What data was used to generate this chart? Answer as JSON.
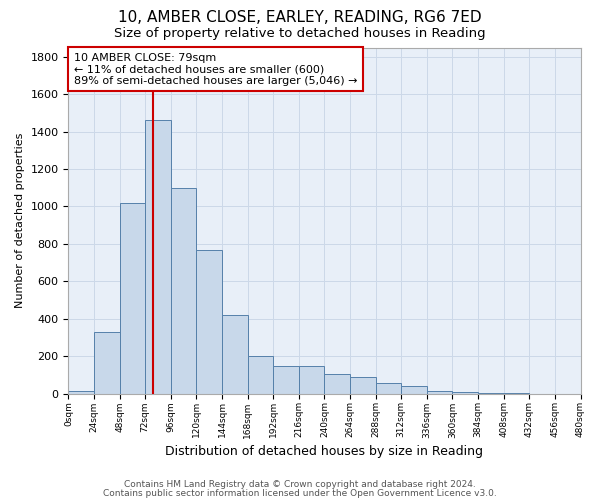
{
  "title1": "10, AMBER CLOSE, EARLEY, READING, RG6 7ED",
  "title2": "Size of property relative to detached houses in Reading",
  "xlabel": "Distribution of detached houses by size in Reading",
  "ylabel": "Number of detached properties",
  "bar_edges": [
    0,
    24,
    48,
    72,
    96,
    120,
    144,
    168,
    192,
    216,
    240,
    264,
    288,
    312,
    336,
    360,
    384,
    408,
    432,
    456,
    480
  ],
  "bar_values": [
    15,
    330,
    1020,
    1460,
    1100,
    770,
    420,
    200,
    145,
    145,
    105,
    90,
    55,
    40,
    15,
    8,
    3,
    1,
    0,
    0
  ],
  "bar_color": "#c8d8ea",
  "bar_edge_color": "#5580aa",
  "bar_linewidth": 0.7,
  "red_line_x": 79,
  "red_line_color": "#cc0000",
  "annotation_text": "10 AMBER CLOSE: 79sqm\n← 11% of detached houses are smaller (600)\n89% of semi-detached houses are larger (5,046) →",
  "annot_facecolor": "white",
  "annot_edgecolor": "#cc0000",
  "annot_fontsize": 8,
  "ylim_max": 1850,
  "yticks": [
    0,
    200,
    400,
    600,
    800,
    1000,
    1200,
    1400,
    1600,
    1800
  ],
  "xtick_labels": [
    "0sqm",
    "24sqm",
    "48sqm",
    "72sqm",
    "96sqm",
    "120sqm",
    "144sqm",
    "168sqm",
    "192sqm",
    "216sqm",
    "240sqm",
    "264sqm",
    "288sqm",
    "312sqm",
    "336sqm",
    "360sqm",
    "384sqm",
    "408sqm",
    "432sqm",
    "456sqm",
    "480sqm"
  ],
  "grid_color": "#ccd8e8",
  "bg_color": "#e8eff8",
  "footer1": "Contains HM Land Registry data © Crown copyright and database right 2024.",
  "footer2": "Contains public sector information licensed under the Open Government Licence v3.0.",
  "title1_fontsize": 11,
  "title2_fontsize": 9.5,
  "xlabel_fontsize": 9,
  "ylabel_fontsize": 8,
  "ytick_fontsize": 8,
  "xtick_fontsize": 6.5,
  "footer_fontsize": 6.5
}
